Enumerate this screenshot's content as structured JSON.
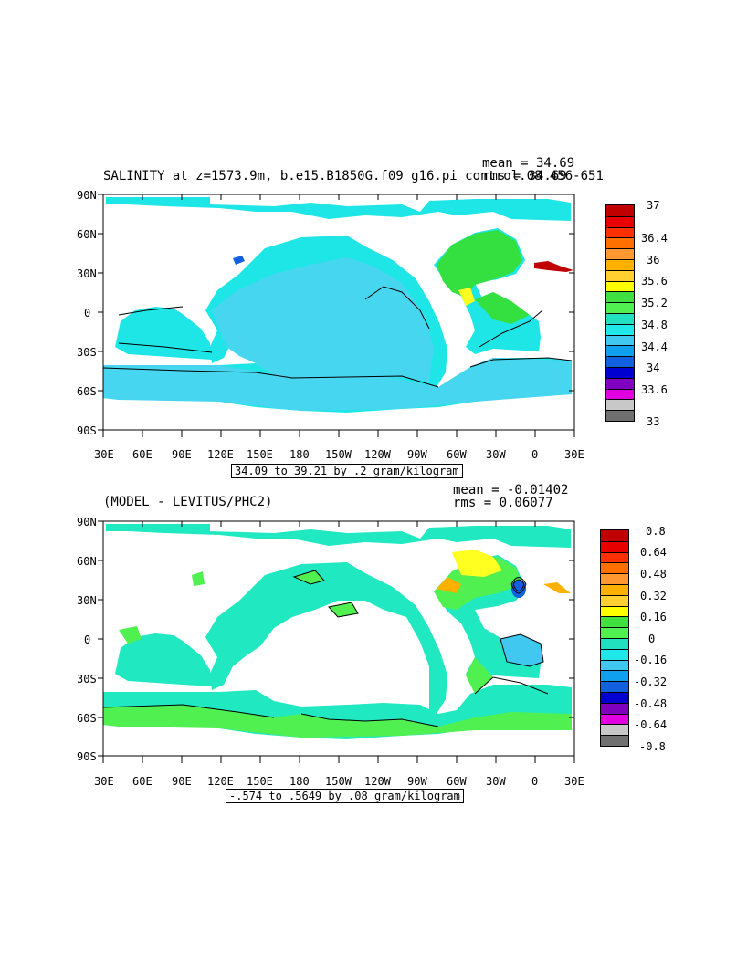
{
  "panel1": {
    "title": "SALINITY at z=1573.9m, b.e15.B1850G.f09_g16.pi_control.08_456-651",
    "mean": "mean = 34.69",
    "rms": "rms = 34.69",
    "range": "34.09 to 39.21 by .2 gram/kilogram",
    "colorbar_labels": [
      "37",
      "36.4",
      "36",
      "35.6",
      "35.2",
      "34.8",
      "34.4",
      "34",
      "33.6",
      "33"
    ],
    "colorbar_colors": [
      "#c00000",
      "#e80000",
      "#ff3000",
      "#ff7000",
      "#ff9830",
      "#ffb000",
      "#ffd030",
      "#ffff00",
      "#40e040",
      "#50f050",
      "#20e0c0",
      "#20e8e8",
      "#40c8f0",
      "#10a0f0",
      "#1060e0",
      "#0000d0",
      "#8000c0",
      "#e000e0",
      "#c8c8c8",
      "#707070"
    ]
  },
  "panel2": {
    "title": "(MODEL - LEVITUS/PHC2)",
    "mean": "mean = -0.01402",
    "rms": "rms = 0.06077",
    "range": "-.574 to .5649 by .08 gram/kilogram",
    "colorbar_labels": [
      "0.8",
      "0.64",
      "0.48",
      "0.32",
      "0.16",
      "0",
      "-0.16",
      "-0.32",
      "-0.48",
      "-0.64",
      "-0.8"
    ],
    "colorbar_colors": [
      "#c00000",
      "#e80000",
      "#ff3000",
      "#ff7000",
      "#ff9830",
      "#ffb000",
      "#ffd030",
      "#ffff00",
      "#40e040",
      "#50f050",
      "#20e0c0",
      "#20e8e8",
      "#40c8f0",
      "#10a0f0",
      "#1060e0",
      "#0000d0",
      "#8000c0",
      "#e000e0",
      "#c8c8c8",
      "#707070"
    ]
  },
  "lat_labels": [
    "90N",
    "60N",
    "30N",
    "0",
    "30S",
    "60S",
    "90S"
  ],
  "lon_labels": [
    "30E",
    "60E",
    "90E",
    "120E",
    "150E",
    "180",
    "150W",
    "120W",
    "90W",
    "60W",
    "30W",
    "0",
    "30E"
  ]
}
